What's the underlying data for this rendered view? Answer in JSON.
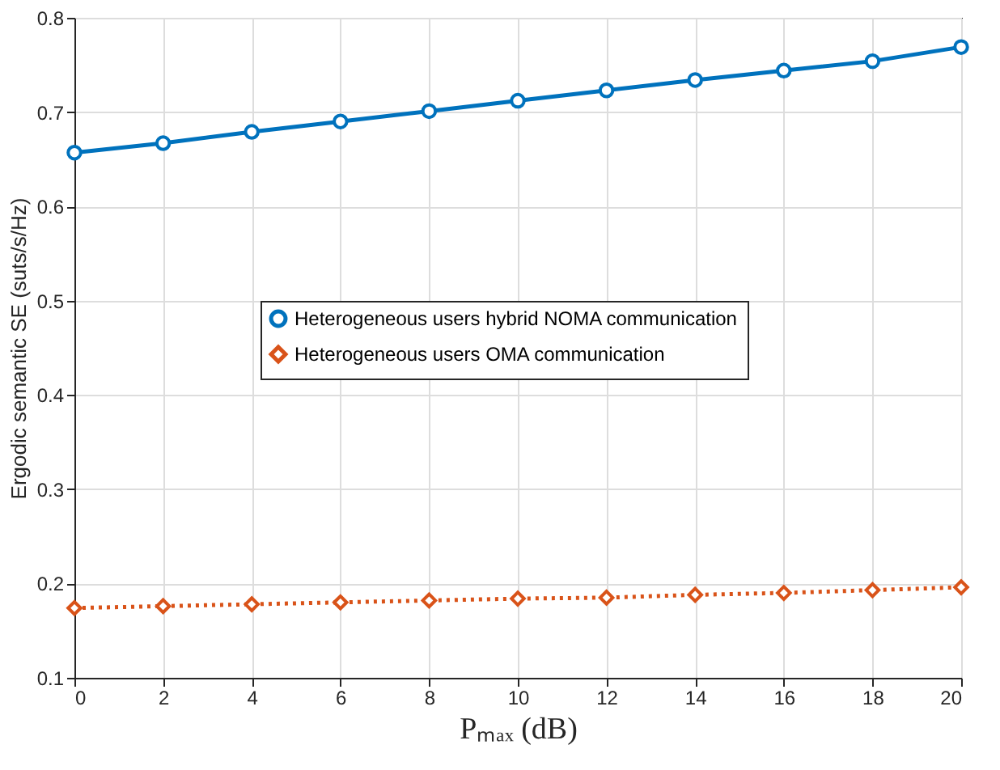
{
  "chart_data": {
    "type": "line",
    "xlabel": "Pₘₐₓ (dB)",
    "ylabel": "Ergodic semantic SE (suts/s/Hz)",
    "x": [
      0,
      2,
      4,
      6,
      8,
      10,
      12,
      14,
      16,
      18,
      20
    ],
    "series": [
      {
        "name": "Heterogeneous users hybrid NOMA communication",
        "color": "#0072bd",
        "marker": "circle",
        "line_style": "solid",
        "values": [
          0.657,
          0.667,
          0.679,
          0.69,
          0.701,
          0.712,
          0.723,
          0.734,
          0.744,
          0.754,
          0.769
        ]
      },
      {
        "name": "Heterogeneous users OMA communication",
        "color": "#d95319",
        "marker": "diamond",
        "line_style": "dotted",
        "values": [
          0.174,
          0.176,
          0.178,
          0.18,
          0.182,
          0.184,
          0.185,
          0.188,
          0.19,
          0.193,
          0.196
        ]
      }
    ],
    "xlim": [
      0,
      20
    ],
    "xticks": [
      0,
      2,
      4,
      6,
      8,
      10,
      12,
      14,
      16,
      18,
      20
    ],
    "ylim": [
      0.1,
      0.8
    ],
    "yticks": [
      0.1,
      0.2,
      0.3,
      0.4,
      0.5,
      0.6,
      0.7,
      0.8
    ],
    "grid": true,
    "legend": "center"
  }
}
